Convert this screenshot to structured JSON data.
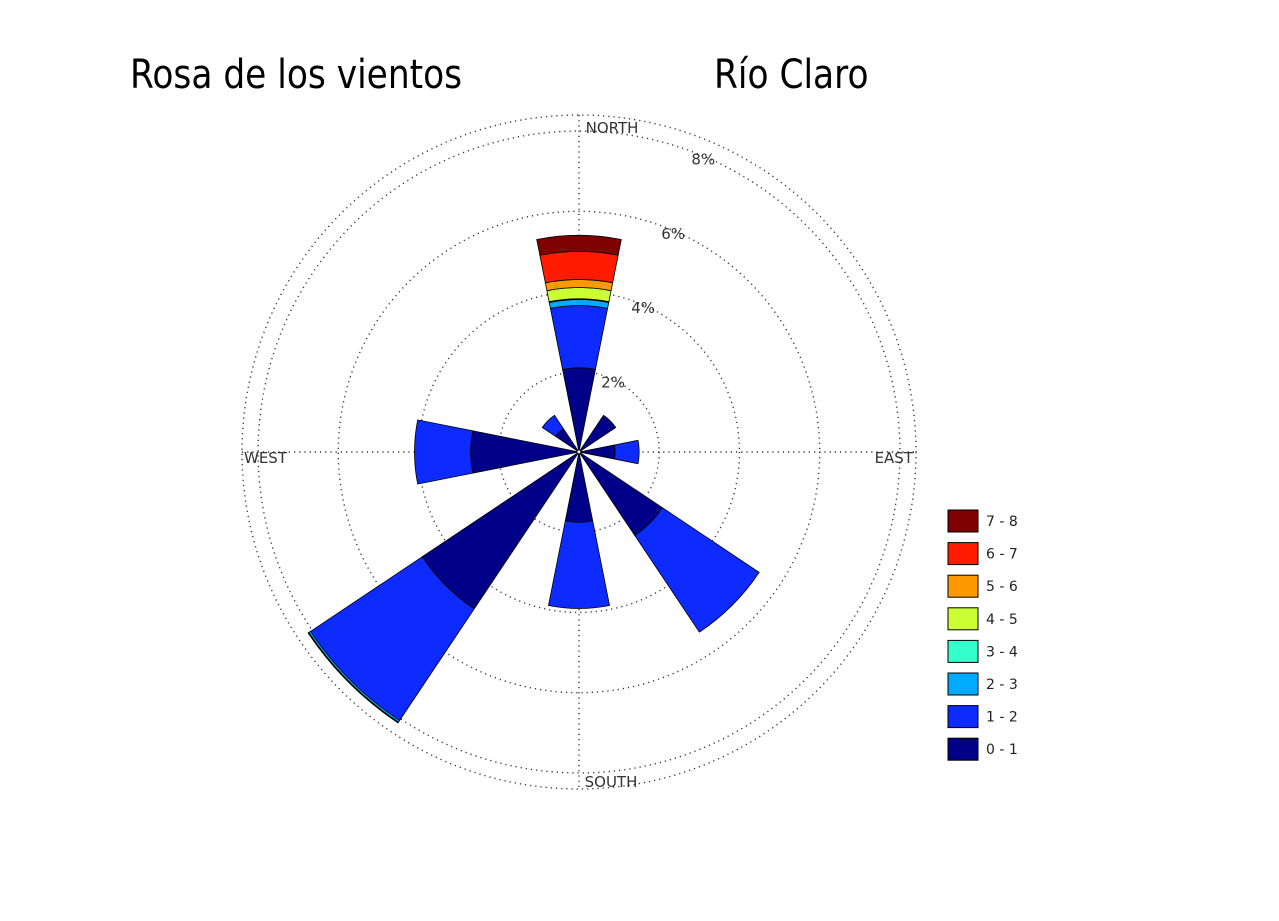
{
  "header": {
    "title": "Rosa de los vientos",
    "station": "Río Claro"
  },
  "chart_data": {
    "type": "wind-rose",
    "title": "Rosa de los vientos",
    "subtitle": "Río Claro",
    "rings": [
      {
        "value": 2,
        "label": "2%"
      },
      {
        "value": 4,
        "label": "4%"
      },
      {
        "value": 6,
        "label": "6%"
      },
      {
        "value": 8,
        "label": "8%"
      }
    ],
    "max_percent": 8.4,
    "directions": [
      {
        "label": "NORTH",
        "angle": 0
      },
      {
        "label": "EAST",
        "angle": 90
      },
      {
        "label": "SOUTH",
        "angle": 180
      },
      {
        "label": "WEST",
        "angle": 270
      }
    ],
    "legend": {
      "placement": "bottom-right",
      "bins": [
        {
          "label": "7 - 8",
          "color": "#7f0000"
        },
        {
          "label": "6 - 7",
          "color": "#ff1a00"
        },
        {
          "label": "5 - 6",
          "color": "#ff9900"
        },
        {
          "label": "4 - 5",
          "color": "#ccff33"
        },
        {
          "label": "3 - 4",
          "color": "#33ffcc"
        },
        {
          "label": "2 - 3",
          "color": "#00aaff"
        },
        {
          "label": "1 - 2",
          "color": "#0d2bff"
        },
        {
          "label": "0 - 1",
          "color": "#000088"
        }
      ]
    },
    "sectors": [
      {
        "direction": "N",
        "angle": 0,
        "cumulative": [
          {
            "bin": "0 - 1",
            "to": 2.1
          },
          {
            "bin": "1 - 2",
            "to": 3.65
          },
          {
            "bin": "2 - 3",
            "to": 3.8
          },
          {
            "bin": "3 - 4",
            "to": 3.82
          },
          {
            "bin": "4 - 5",
            "to": 4.1
          },
          {
            "bin": "5 - 6",
            "to": 4.3
          },
          {
            "bin": "6 - 7",
            "to": 5.0
          },
          {
            "bin": "7 - 8",
            "to": 5.4
          }
        ]
      },
      {
        "direction": "NE",
        "angle": 45,
        "cumulative": [
          {
            "bin": "0 - 1",
            "to": 1.1
          }
        ]
      },
      {
        "direction": "E",
        "angle": 90,
        "cumulative": [
          {
            "bin": "0 - 1",
            "to": 0.9
          },
          {
            "bin": "1 - 2",
            "to": 1.5
          }
        ]
      },
      {
        "direction": "SE",
        "angle": 135,
        "cumulative": [
          {
            "bin": "0 - 1",
            "to": 2.5
          },
          {
            "bin": "1 - 2",
            "to": 5.4
          }
        ]
      },
      {
        "direction": "S",
        "angle": 180,
        "cumulative": [
          {
            "bin": "0 - 1",
            "to": 1.75
          },
          {
            "bin": "1 - 2",
            "to": 3.9
          }
        ]
      },
      {
        "direction": "SW",
        "angle": 225,
        "cumulative": [
          {
            "bin": "0 - 1",
            "to": 4.7
          },
          {
            "bin": "1 - 2",
            "to": 8.05
          },
          {
            "bin": "2 - 3",
            "to": 8.1
          },
          {
            "bin": "3 - 4",
            "to": 8.12
          }
        ]
      },
      {
        "direction": "W",
        "angle": 270,
        "cumulative": [
          {
            "bin": "0 - 1",
            "to": 2.7
          },
          {
            "bin": "1 - 2",
            "to": 4.1
          }
        ]
      },
      {
        "direction": "NW",
        "angle": 315,
        "cumulative": [
          {
            "bin": "0 - 1",
            "to": 0.7
          },
          {
            "bin": "1 - 2",
            "to": 1.1
          }
        ]
      }
    ]
  }
}
